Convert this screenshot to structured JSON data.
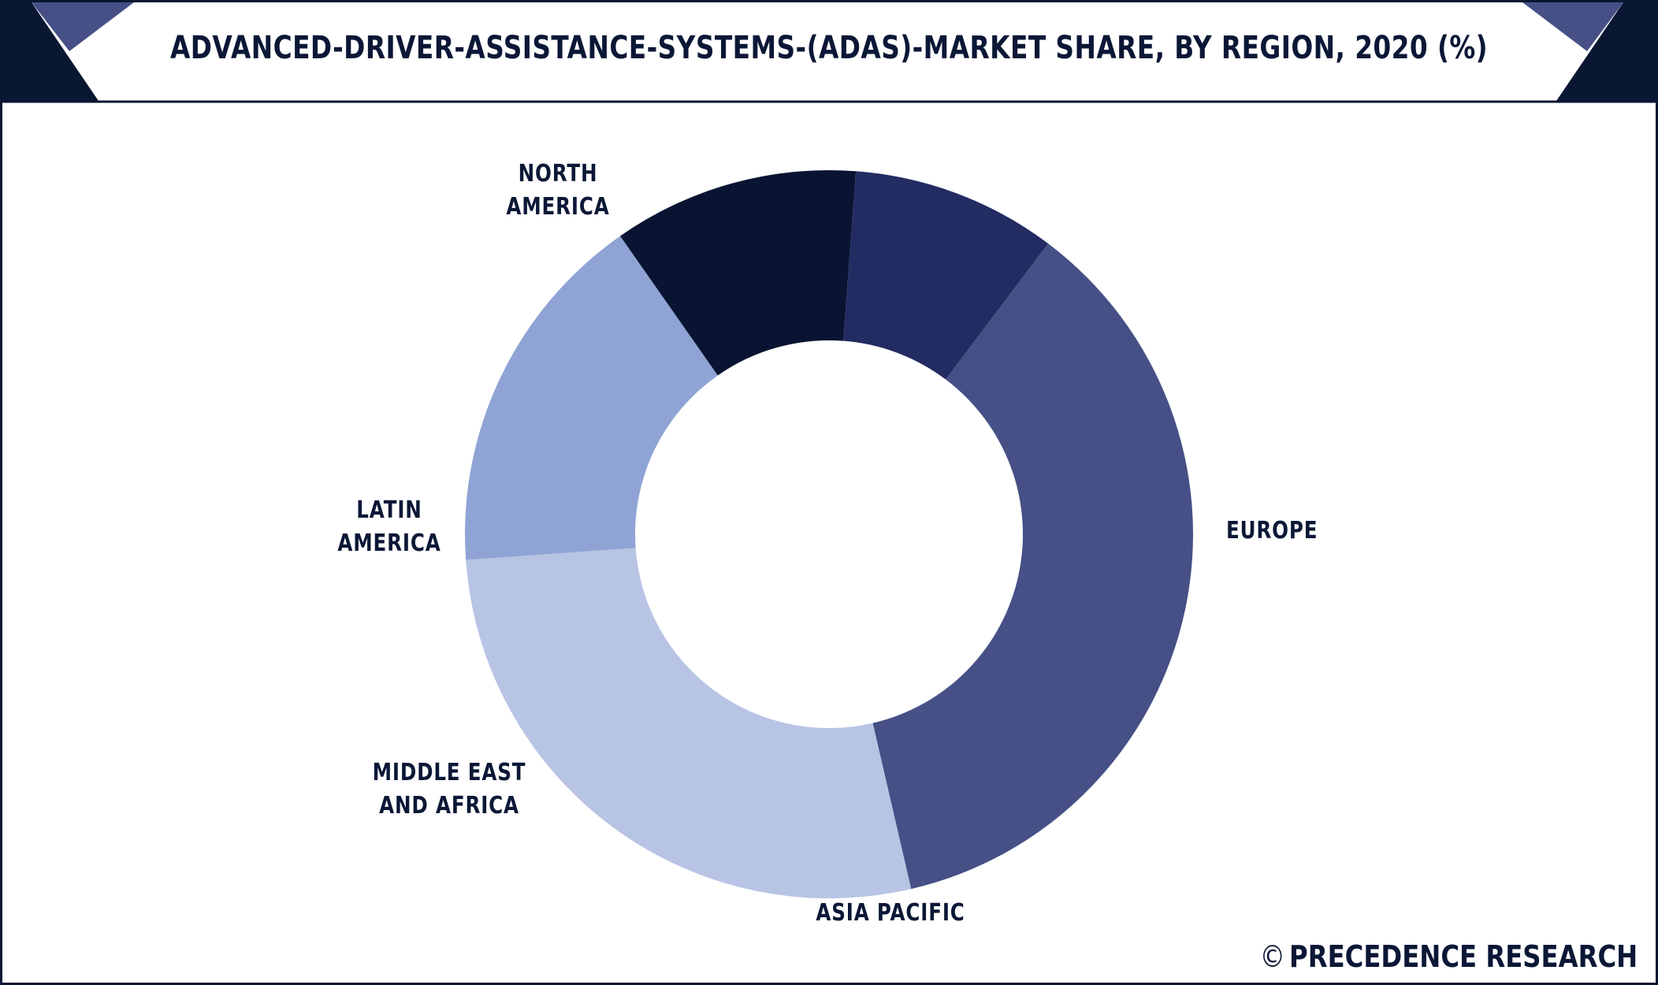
{
  "chart_data": {
    "type": "pie",
    "donut": true,
    "title": "ADVANCED-DRIVER-ASSISTANCE-SYSTEMS-(ADAS)-MARKET SHARE, BY REGION, 2020 (%)",
    "categories": [
      "NORTH AMERICA",
      "EUROPE",
      "ASIA PACIFIC",
      "MIDDLE EAST AND AFRICA",
      "LATIN AMERICA"
    ],
    "label_lines": [
      [
        "NORTH",
        "AMERICA"
      ],
      [
        "EUROPE"
      ],
      [
        "ASIA PACIFIC"
      ],
      [
        "MIDDLE EAST",
        "AND AFRICA"
      ],
      [
        "LATIN",
        "AMERICA"
      ]
    ],
    "values": [
      36.1,
      27.5,
      16.4,
      10.9,
      9.1
    ],
    "colors": [
      "#465086",
      "#b8c4e4",
      "#8fa4d4",
      "#081432",
      "#222c62"
    ],
    "start_angle_deg": -53
  },
  "brand": {
    "symbol": "©",
    "name": "PRECEDENCE RESEARCH"
  },
  "theme": {
    "navy": "#0b1736",
    "accent": "#465086"
  }
}
